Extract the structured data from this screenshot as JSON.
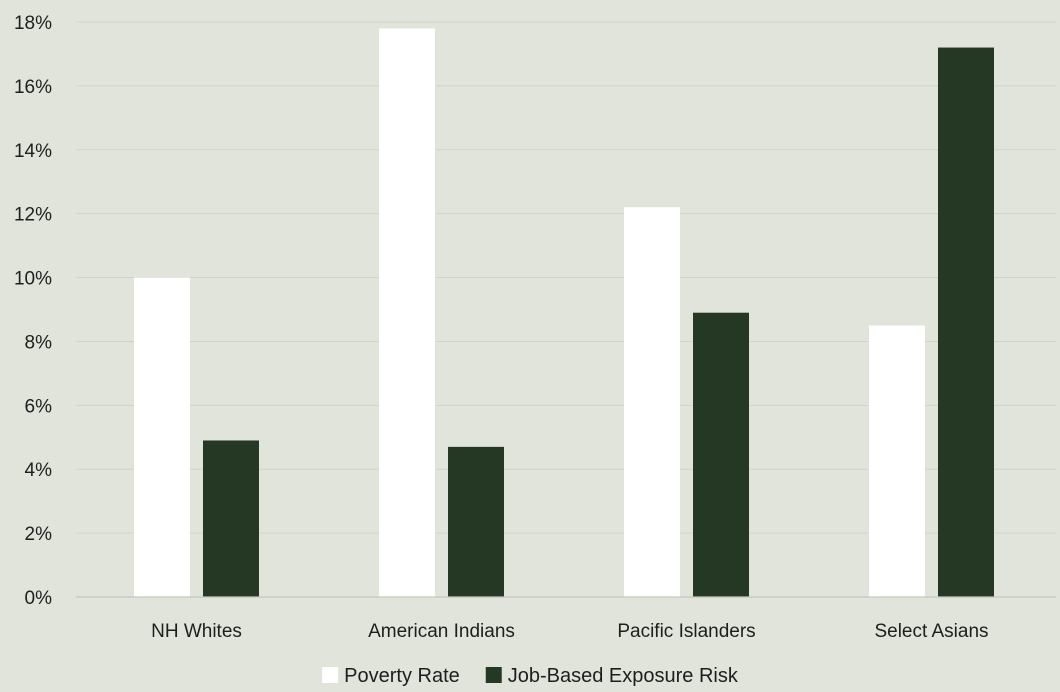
{
  "chart_data": {
    "type": "bar",
    "categories": [
      "NH Whites",
      "American Indians",
      "Pacific Islanders",
      "Select Asians"
    ],
    "series": [
      {
        "name": "Poverty Rate",
        "values": [
          10.0,
          17.8,
          12.2,
          8.5
        ],
        "color": "#ffffff"
      },
      {
        "name": "Job-Based Exposure Risk",
        "values": [
          4.9,
          4.7,
          8.9,
          17.2
        ],
        "color": "#253823"
      }
    ],
    "y_ticks": [
      "0%",
      "2%",
      "4%",
      "6%",
      "8%",
      "10%",
      "12%",
      "14%",
      "16%",
      "18%"
    ],
    "ylim": [
      0,
      18
    ],
    "y_unit": "%",
    "grid": true,
    "legend_position": "bottom",
    "background": "#e1e4db"
  }
}
